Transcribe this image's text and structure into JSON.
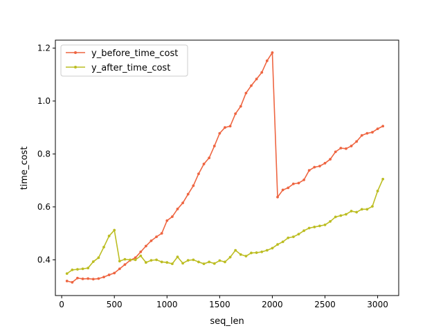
{
  "chart_data": {
    "type": "line",
    "title": "",
    "xlabel": "seq_len",
    "ylabel": "time_cost",
    "xlim": [
      -60,
      3200
    ],
    "ylim": [
      0.265,
      1.23
    ],
    "x_ticks": [
      0,
      500,
      1000,
      1500,
      2000,
      2500,
      3000
    ],
    "x_tick_labels": [
      "0",
      "500",
      "1000",
      "1500",
      "2000",
      "2500",
      "3000"
    ],
    "y_ticks": [
      0.4,
      0.6,
      0.8,
      1.0,
      1.2
    ],
    "y_tick_labels": [
      "0.4",
      "0.6",
      "0.8",
      "1.0",
      "1.2"
    ],
    "grid": false,
    "legend_position": "upper-left",
    "x": [
      50,
      100,
      150,
      200,
      250,
      300,
      350,
      400,
      450,
      500,
      550,
      600,
      650,
      700,
      750,
      800,
      850,
      900,
      950,
      1000,
      1050,
      1100,
      1150,
      1200,
      1250,
      1300,
      1350,
      1400,
      1450,
      1500,
      1550,
      1600,
      1650,
      1700,
      1750,
      1800,
      1850,
      1900,
      1950,
      2000,
      2050,
      2100,
      2150,
      2200,
      2250,
      2300,
      2350,
      2400,
      2450,
      2500,
      2550,
      2600,
      2650,
      2700,
      2750,
      2800,
      2850,
      2900,
      2950,
      3000,
      3050
    ],
    "series": [
      {
        "name": "y_before_time_cost",
        "color": "#ee6541",
        "values": [
          0.32,
          0.315,
          0.331,
          0.328,
          0.329,
          0.327,
          0.329,
          0.335,
          0.343,
          0.35,
          0.366,
          0.382,
          0.398,
          0.408,
          0.43,
          0.452,
          0.472,
          0.487,
          0.5,
          0.548,
          0.563,
          0.592,
          0.615,
          0.648,
          0.68,
          0.725,
          0.762,
          0.785,
          0.83,
          0.878,
          0.9,
          0.905,
          0.952,
          0.98,
          1.03,
          1.058,
          1.083,
          1.108,
          1.152,
          1.183,
          0.637,
          0.664,
          0.672,
          0.687,
          0.69,
          0.702,
          0.738,
          0.75,
          0.754,
          0.765,
          0.78,
          0.808,
          0.822,
          0.82,
          0.83,
          0.847,
          0.87,
          0.878,
          0.882,
          0.895,
          0.905
        ]
      },
      {
        "name": "y_after_time_cost",
        "color": "#bcbd22",
        "values": [
          0.348,
          0.362,
          0.364,
          0.366,
          0.369,
          0.393,
          0.408,
          0.448,
          0.49,
          0.512,
          0.395,
          0.402,
          0.4,
          0.4,
          0.415,
          0.39,
          0.398,
          0.4,
          0.392,
          0.39,
          0.385,
          0.411,
          0.387,
          0.398,
          0.4,
          0.392,
          0.385,
          0.392,
          0.386,
          0.397,
          0.392,
          0.41,
          0.436,
          0.42,
          0.414,
          0.426,
          0.427,
          0.43,
          0.436,
          0.444,
          0.458,
          0.468,
          0.483,
          0.487,
          0.497,
          0.51,
          0.52,
          0.524,
          0.528,
          0.532,
          0.545,
          0.562,
          0.567,
          0.572,
          0.584,
          0.58,
          0.591,
          0.591,
          0.602,
          0.66,
          0.705
        ]
      }
    ]
  }
}
